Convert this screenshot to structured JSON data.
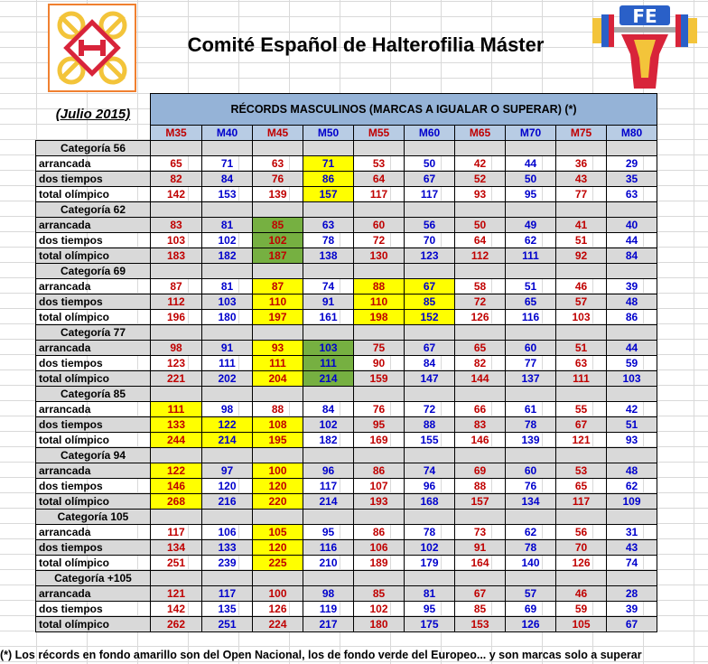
{
  "title": "Comité Español de Halterofilia Máster",
  "date": "(Julio 2015)",
  "table_title": "RÉCORDS MASCULINOS (MARCAS A IGUALAR O SUPERAR) (*)",
  "age_groups": [
    "M35",
    "M40",
    "M45",
    "M50",
    "M55",
    "M60",
    "M65",
    "M70",
    "M75",
    "M80"
  ],
  "footer": "(*) Los récords en fondo amarillo son del Open Nacional, los de fondo verde del Europeo... y son marcas solo a superar",
  "colors": {
    "yellow": "#ffff00",
    "green": "#76b041",
    "header": "#95b3d7",
    "red": "#c00000",
    "blue": "#0000cc"
  },
  "logo_right_text": "FE",
  "categories": [
    {
      "name": "Categoría 56",
      "rows": [
        {
          "label": "arrancada",
          "values": [
            "65",
            "71",
            "63",
            "71",
            "53",
            "50",
            "42",
            "44",
            "36",
            "29"
          ],
          "hl": [
            "",
            "",
            "",
            "y",
            "",
            "",
            "",
            "",
            "",
            ""
          ]
        },
        {
          "label": "dos tiempos",
          "values": [
            "82",
            "84",
            "76",
            "86",
            "64",
            "67",
            "52",
            "50",
            "43",
            "35"
          ],
          "hl": [
            "",
            "",
            "",
            "y",
            "",
            "",
            "",
            "",
            "",
            ""
          ]
        },
        {
          "label": "total olímpico",
          "values": [
            "142",
            "153",
            "139",
            "157",
            "117",
            "117",
            "93",
            "95",
            "77",
            "63"
          ],
          "hl": [
            "",
            "",
            "",
            "y",
            "",
            "",
            "",
            "",
            "",
            ""
          ]
        }
      ]
    },
    {
      "name": "Categoría 62",
      "rows": [
        {
          "label": "arrancada",
          "values": [
            "83",
            "81",
            "85",
            "63",
            "60",
            "56",
            "50",
            "49",
            "41",
            "40"
          ],
          "hl": [
            "",
            "",
            "g",
            "",
            "",
            "",
            "",
            "",
            "",
            ""
          ]
        },
        {
          "label": "dos tiempos",
          "values": [
            "103",
            "102",
            "102",
            "78",
            "72",
            "70",
            "64",
            "62",
            "51",
            "44"
          ],
          "hl": [
            "",
            "",
            "g",
            "",
            "",
            "",
            "",
            "",
            "",
            ""
          ]
        },
        {
          "label": "total olímpico",
          "values": [
            "183",
            "182",
            "187",
            "138",
            "130",
            "123",
            "112",
            "111",
            "92",
            "84"
          ],
          "hl": [
            "",
            "",
            "g",
            "",
            "",
            "",
            "",
            "",
            "",
            ""
          ]
        }
      ]
    },
    {
      "name": "Categoría 69",
      "rows": [
        {
          "label": "arrancada",
          "values": [
            "87",
            "81",
            "87",
            "74",
            "88",
            "67",
            "58",
            "51",
            "46",
            "39"
          ],
          "hl": [
            "",
            "",
            "y",
            "",
            "y",
            "y",
            "",
            "",
            "",
            ""
          ]
        },
        {
          "label": "dos tiempos",
          "values": [
            "112",
            "103",
            "110",
            "91",
            "110",
            "85",
            "72",
            "65",
            "57",
            "48"
          ],
          "hl": [
            "",
            "",
            "y",
            "",
            "y",
            "y",
            "",
            "",
            "",
            ""
          ]
        },
        {
          "label": "total olímpico",
          "values": [
            "196",
            "180",
            "197",
            "161",
            "198",
            "152",
            "126",
            "116",
            "103",
            "86"
          ],
          "hl": [
            "",
            "",
            "y",
            "",
            "y",
            "y",
            "",
            "",
            "",
            ""
          ]
        }
      ]
    },
    {
      "name": "Categoría 77",
      "rows": [
        {
          "label": "arrancada",
          "values": [
            "98",
            "91",
            "93",
            "103",
            "75",
            "67",
            "65",
            "60",
            "51",
            "44"
          ],
          "hl": [
            "",
            "",
            "y",
            "g",
            "",
            "",
            "",
            "",
            "",
            ""
          ]
        },
        {
          "label": "dos tiempos",
          "values": [
            "123",
            "111",
            "111",
            "111",
            "90",
            "84",
            "82",
            "77",
            "63",
            "59"
          ],
          "hl": [
            "",
            "",
            "y",
            "g",
            "",
            "",
            "",
            "",
            "",
            ""
          ]
        },
        {
          "label": "total olímpico",
          "values": [
            "221",
            "202",
            "204",
            "214",
            "159",
            "147",
            "144",
            "137",
            "111",
            "103"
          ],
          "hl": [
            "",
            "",
            "y",
            "g",
            "",
            "",
            "",
            "",
            "",
            ""
          ]
        }
      ]
    },
    {
      "name": "Categoría 85",
      "rows": [
        {
          "label": "arrancada",
          "values": [
            "111",
            "98",
            "88",
            "84",
            "76",
            "72",
            "66",
            "61",
            "55",
            "42"
          ],
          "hl": [
            "y",
            "",
            "",
            "",
            "",
            "",
            "",
            "",
            "",
            ""
          ]
        },
        {
          "label": "dos tiempos",
          "values": [
            "133",
            "122",
            "108",
            "102",
            "95",
            "88",
            "83",
            "78",
            "67",
            "51"
          ],
          "hl": [
            "y",
            "y",
            "y",
            "",
            "",
            "",
            "",
            "",
            "",
            ""
          ]
        },
        {
          "label": "total olímpico",
          "values": [
            "244",
            "214",
            "195",
            "182",
            "169",
            "155",
            "146",
            "139",
            "121",
            "93"
          ],
          "hl": [
            "y",
            "y",
            "y",
            "",
            "",
            "",
            "",
            "",
            "",
            ""
          ]
        }
      ]
    },
    {
      "name": "Categoría 94",
      "rows": [
        {
          "label": "arrancada",
          "values": [
            "122",
            "97",
            "100",
            "96",
            "86",
            "74",
            "69",
            "60",
            "53",
            "48"
          ],
          "hl": [
            "y",
            "",
            "y",
            "",
            "",
            "",
            "",
            "",
            "",
            ""
          ]
        },
        {
          "label": "dos tiempos",
          "values": [
            "146",
            "120",
            "120",
            "117",
            "107",
            "96",
            "88",
            "76",
            "65",
            "62"
          ],
          "hl": [
            "y",
            "",
            "y",
            "",
            "",
            "",
            "",
            "",
            "",
            ""
          ]
        },
        {
          "label": "total olímpico",
          "values": [
            "268",
            "216",
            "220",
            "214",
            "193",
            "168",
            "157",
            "134",
            "117",
            "109"
          ],
          "hl": [
            "y",
            "",
            "y",
            "",
            "",
            "",
            "",
            "",
            "",
            ""
          ]
        }
      ]
    },
    {
      "name": "Categoría 105",
      "rows": [
        {
          "label": "arrancada",
          "values": [
            "117",
            "106",
            "105",
            "95",
            "86",
            "78",
            "73",
            "62",
            "56",
            "31"
          ],
          "hl": [
            "",
            "",
            "y",
            "",
            "",
            "",
            "",
            "",
            "",
            ""
          ]
        },
        {
          "label": "dos tiempos",
          "values": [
            "134",
            "133",
            "120",
            "116",
            "106",
            "102",
            "91",
            "78",
            "70",
            "43"
          ],
          "hl": [
            "",
            "",
            "y",
            "",
            "",
            "",
            "",
            "",
            "",
            ""
          ]
        },
        {
          "label": "total olímpico",
          "values": [
            "251",
            "239",
            "225",
            "210",
            "189",
            "179",
            "164",
            "140",
            "126",
            "74"
          ],
          "hl": [
            "",
            "",
            "y",
            "",
            "",
            "",
            "",
            "",
            "",
            ""
          ]
        }
      ]
    },
    {
      "name": "Categoría +105",
      "rows": [
        {
          "label": "arrancada",
          "values": [
            "121",
            "117",
            "100",
            "98",
            "85",
            "81",
            "67",
            "57",
            "46",
            "28"
          ],
          "hl": [
            "",
            "",
            "",
            "",
            "",
            "",
            "",
            "",
            "",
            ""
          ]
        },
        {
          "label": "dos tiempos",
          "values": [
            "142",
            "135",
            "126",
            "119",
            "102",
            "95",
            "85",
            "69",
            "59",
            "39"
          ],
          "hl": [
            "",
            "",
            "",
            "",
            "",
            "",
            "",
            "",
            "",
            ""
          ]
        },
        {
          "label": "total olímpico",
          "values": [
            "262",
            "251",
            "224",
            "217",
            "180",
            "175",
            "153",
            "126",
            "105",
            "67"
          ],
          "hl": [
            "",
            "",
            "",
            "",
            "",
            "",
            "",
            "",
            "",
            ""
          ]
        }
      ]
    }
  ]
}
